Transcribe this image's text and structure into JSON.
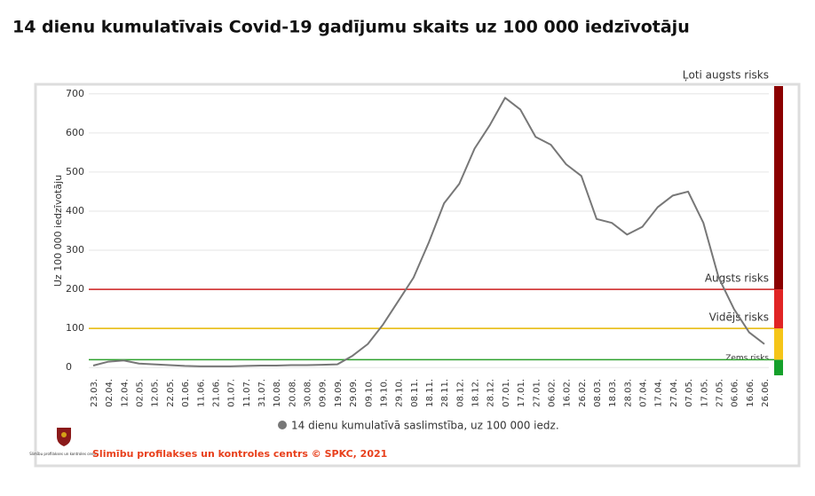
{
  "chart_data": {
    "type": "line",
    "title": "14 dienu kumulatīvais Covid-19 gadījumu skaits uz 100 000 iedzīvotāju",
    "y_label": "Uz 100 000 iedzīvotāju",
    "categories": [
      "23.03.",
      "02.04.",
      "12.04.",
      "02.05.",
      "12.05.",
      "22.05.",
      "01.06.",
      "11.06.",
      "21.06.",
      "01.07.",
      "11.07.",
      "31.07.",
      "10.08.",
      "20.08.",
      "30.08.",
      "09.09.",
      "19.09.",
      "29.09.",
      "09.10.",
      "19.10.",
      "29.10.",
      "08.11.",
      "18.11.",
      "28.11.",
      "08.12.",
      "18.12.",
      "28.12.",
      "07.01.",
      "17.01.",
      "27.01.",
      "06.02.",
      "16.02.",
      "26.02.",
      "08.03.",
      "18.03.",
      "28.03.",
      "07.04.",
      "17.04.",
      "27.04.",
      "07.05.",
      "17.05.",
      "27.05.",
      "06.06.",
      "16.06.",
      "26.06."
    ],
    "series": [
      {
        "name": "14 dienu kumulatīvā saslimstība, uz 100 000 iedz.",
        "color": "#777777",
        "values": [
          5,
          15,
          18,
          10,
          8,
          6,
          4,
          3,
          3,
          3,
          4,
          5,
          5,
          6,
          6,
          7,
          8,
          30,
          60,
          110,
          170,
          230,
          320,
          420,
          470,
          560,
          620,
          690,
          660,
          590,
          570,
          520,
          490,
          380,
          370,
          340,
          360,
          410,
          440,
          450,
          370,
          230,
          150,
          90,
          60
        ]
      }
    ],
    "ylim": [
      -20,
      720
    ],
    "yticks": [
      0,
      100,
      200,
      300,
      400,
      500,
      600,
      700
    ],
    "grid": true,
    "thresholds": [
      {
        "value": 20,
        "color": "#2ca02c"
      },
      {
        "value": 100,
        "color": "#e6b800"
      },
      {
        "value": 200,
        "color": "#cc1f1f"
      }
    ],
    "risk_bands": [
      {
        "label": "Zems risks",
        "color": "#14a02a"
      },
      {
        "label": "Vidējs risks",
        "color": "#f5c518"
      },
      {
        "label": "Augsts risks",
        "color": "#e02424"
      },
      {
        "label": "Ļoti augsts risks",
        "color": "#8b0000"
      }
    ],
    "logo_text": "Slimību profilakses un kontroles centrs",
    "source": "Slimību profilakses un kontroles centrs © SPKC, 2021"
  }
}
